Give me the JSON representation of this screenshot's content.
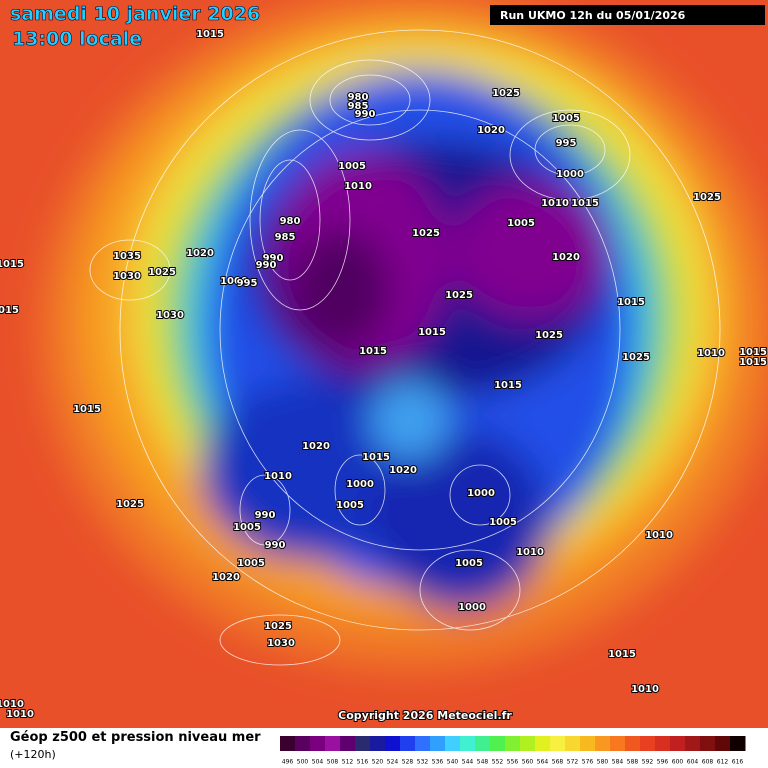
{
  "header": {
    "date": "samedi 10 janvier 2026",
    "time": "13:00 locale",
    "run": "Run UKMO 12h du 05/01/2026"
  },
  "isobar_labels": [
    "1015",
    "980",
    "985",
    "990",
    "1025",
    "1005",
    "1020",
    "995",
    "1005",
    "1010",
    "1000",
    "1010",
    "1015",
    "1025",
    "980",
    "985",
    "1025",
    "1005",
    "1020",
    "1035",
    "990",
    "1020",
    "1030",
    "1025",
    "1000",
    "995",
    "990",
    "1015",
    "1025",
    "1015",
    "1015",
    "1030",
    "1015",
    "1025",
    "1015",
    "1010",
    "1015",
    "1015",
    "1025",
    "1015",
    "1015",
    "1020",
    "1015",
    "1020",
    "1010",
    "1000",
    "1000",
    "1005",
    "990",
    "1005",
    "1005",
    "1025",
    "1010",
    "990",
    "1010",
    "1005",
    "1005",
    "1020",
    "1000",
    "1025",
    "1030",
    "1015",
    "1010",
    "1010",
    "1010"
  ],
  "copyright": "Copyright 2026 Meteociel.fr",
  "footer": {
    "title": "Géop z500 et pression niveau mer",
    "lead": "(+120h)"
  },
  "legend": {
    "labels": [
      "496",
      "500",
      "504",
      "508",
      "512",
      "516",
      "520",
      "524",
      "528",
      "532",
      "536",
      "540",
      "544",
      "548",
      "552",
      "556",
      "560",
      "564",
      "568",
      "572",
      "576",
      "580",
      "584",
      "588",
      "592",
      "596",
      "600",
      "604",
      "608",
      "612",
      "616"
    ],
    "colors": [
      "#3a0030",
      "#5a0060",
      "#7a0080",
      "#9a10a0",
      "#600070",
      "#2a2a70",
      "#1a1aa0",
      "#1010d0",
      "#2040f0",
      "#3070ff",
      "#30a0ff",
      "#40d0ff",
      "#40f0d0",
      "#40f090",
      "#50f050",
      "#80f030",
      "#b0f020",
      "#e0f020",
      "#f8f040",
      "#f8d830",
      "#f8b820",
      "#f89820",
      "#f87820",
      "#f05820",
      "#e84020",
      "#d83020",
      "#c02020",
      "#a01818",
      "#801010",
      "#600808",
      "#100000"
    ]
  }
}
